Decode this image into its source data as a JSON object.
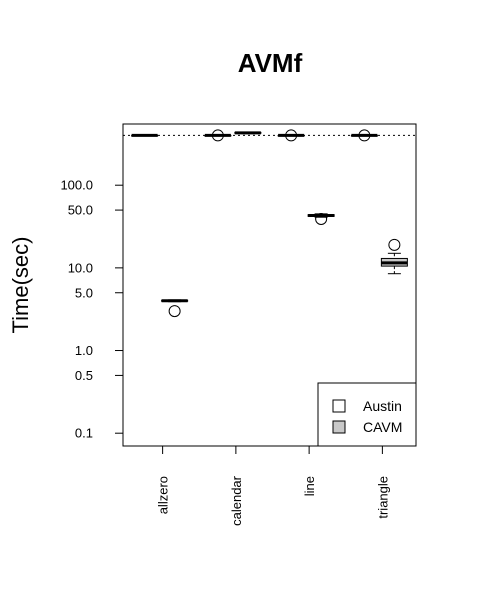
{
  "chart_data": {
    "type": "box",
    "title": "AVMf",
    "ylabel": "Time(sec)",
    "xlabel": "",
    "y_scale": "log",
    "ylim": [
      0.07,
      550
    ],
    "y_ticks": [
      0.1,
      0.5,
      1.0,
      5.0,
      10.0,
      50.0,
      100.0
    ],
    "y_tick_labels": [
      "0.1",
      "0.5",
      "1.0",
      "5.0",
      "10.0",
      "50.0",
      "100.0"
    ],
    "reference_line": 400,
    "categories": [
      "allzero",
      "calendar",
      "line",
      "triangle"
    ],
    "legend": {
      "position": "bottom-right"
    },
    "series": [
      {
        "name": "Austin",
        "fill": "#ffffff",
        "boxes": [
          {
            "category": "allzero",
            "min": 400,
            "q1": 400,
            "median": 400,
            "q3": 400,
            "max": 400,
            "outliers": []
          },
          {
            "category": "calendar",
            "min": 400,
            "q1": 400,
            "median": 400,
            "q3": 400,
            "max": 400,
            "outliers": [
              400
            ]
          },
          {
            "category": "line",
            "min": 400,
            "q1": 400,
            "median": 400,
            "q3": 400,
            "max": 400,
            "outliers": [
              400
            ]
          },
          {
            "category": "triangle",
            "min": 400,
            "q1": 400,
            "median": 400,
            "q3": 400,
            "max": 400,
            "outliers": [
              400
            ]
          }
        ]
      },
      {
        "name": "CAVM",
        "fill": "#c8c8c8",
        "boxes": [
          {
            "category": "allzero",
            "min": 3.9,
            "q1": 3.95,
            "median": 4.0,
            "q3": 4.05,
            "max": 4.1,
            "outliers": [
              3.0
            ]
          },
          {
            "category": "calendar",
            "min": 420,
            "q1": 425,
            "median": 430,
            "q3": 435,
            "max": 440,
            "outliers": []
          },
          {
            "category": "line",
            "min": 41,
            "q1": 42,
            "median": 43,
            "q3": 44,
            "max": 45,
            "outliers": [
              39
            ]
          },
          {
            "category": "triangle",
            "min": 8.5,
            "q1": 10.5,
            "median": 11.5,
            "q3": 13,
            "max": 15,
            "outliers": [
              19
            ]
          }
        ]
      }
    ]
  }
}
